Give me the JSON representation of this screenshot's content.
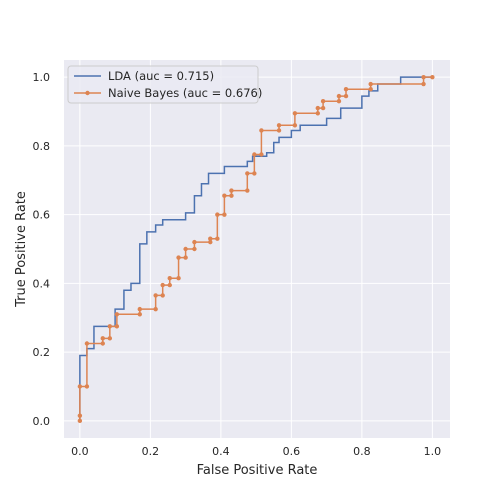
{
  "chart_data": {
    "type": "line",
    "title": "",
    "xlabel": "False Positive Rate",
    "ylabel": "True Positive Rate",
    "xlim": [
      -0.045,
      1.05
    ],
    "ylim": [
      -0.05,
      1.05
    ],
    "xticks": [
      0.0,
      0.2,
      0.4,
      0.6,
      0.8,
      1.0
    ],
    "yticks": [
      0.0,
      0.2,
      0.4,
      0.6,
      0.8,
      1.0
    ],
    "tick_labels_x": [
      "0.0",
      "0.2",
      "0.4",
      "0.6",
      "0.8",
      "1.0"
    ],
    "tick_labels_y": [
      "0.0",
      "0.2",
      "0.4",
      "0.6",
      "0.8",
      "1.0"
    ],
    "grid": true,
    "legend_position": "top-left",
    "background": "#eaeaf2",
    "series": [
      {
        "name": "LDA (auc = 0.715)",
        "color": "#4c72b0",
        "marker": "none",
        "drawstyle": "steps-post",
        "points": [
          [
            0.0,
            0.0
          ],
          [
            0.0,
            0.19
          ],
          [
            0.02,
            0.19
          ],
          [
            0.02,
            0.21
          ],
          [
            0.04,
            0.21
          ],
          [
            0.04,
            0.275
          ],
          [
            0.1,
            0.275
          ],
          [
            0.1,
            0.325
          ],
          [
            0.125,
            0.325
          ],
          [
            0.125,
            0.38
          ],
          [
            0.145,
            0.38
          ],
          [
            0.145,
            0.4
          ],
          [
            0.17,
            0.4
          ],
          [
            0.17,
            0.515
          ],
          [
            0.19,
            0.515
          ],
          [
            0.19,
            0.55
          ],
          [
            0.215,
            0.55
          ],
          [
            0.215,
            0.57
          ],
          [
            0.235,
            0.57
          ],
          [
            0.235,
            0.585
          ],
          [
            0.3,
            0.585
          ],
          [
            0.3,
            0.605
          ],
          [
            0.325,
            0.605
          ],
          [
            0.325,
            0.655
          ],
          [
            0.345,
            0.655
          ],
          [
            0.345,
            0.69
          ],
          [
            0.365,
            0.69
          ],
          [
            0.365,
            0.72
          ],
          [
            0.41,
            0.72
          ],
          [
            0.41,
            0.74
          ],
          [
            0.475,
            0.74
          ],
          [
            0.475,
            0.755
          ],
          [
            0.49,
            0.755
          ],
          [
            0.49,
            0.77
          ],
          [
            0.53,
            0.77
          ],
          [
            0.53,
            0.78
          ],
          [
            0.55,
            0.78
          ],
          [
            0.55,
            0.81
          ],
          [
            0.565,
            0.81
          ],
          [
            0.565,
            0.825
          ],
          [
            0.6,
            0.825
          ],
          [
            0.6,
            0.845
          ],
          [
            0.625,
            0.845
          ],
          [
            0.625,
            0.86
          ],
          [
            0.7,
            0.86
          ],
          [
            0.7,
            0.88
          ],
          [
            0.74,
            0.88
          ],
          [
            0.74,
            0.91
          ],
          [
            0.8,
            0.91
          ],
          [
            0.8,
            0.945
          ],
          [
            0.82,
            0.945
          ],
          [
            0.82,
            0.96
          ],
          [
            0.845,
            0.96
          ],
          [
            0.845,
            0.98
          ],
          [
            0.91,
            0.98
          ],
          [
            0.91,
            1.0
          ],
          [
            1.0,
            1.0
          ]
        ]
      },
      {
        "name": "Naive Bayes (auc = 0.676)",
        "color": "#dd8452",
        "marker": "circle",
        "drawstyle": "points",
        "points": [
          [
            0.0,
            0.0
          ],
          [
            0.0,
            0.015
          ],
          [
            0.0,
            0.1
          ],
          [
            0.02,
            0.1
          ],
          [
            0.02,
            0.225
          ],
          [
            0.065,
            0.225
          ],
          [
            0.065,
            0.24
          ],
          [
            0.085,
            0.24
          ],
          [
            0.085,
            0.275
          ],
          [
            0.105,
            0.275
          ],
          [
            0.105,
            0.31
          ],
          [
            0.17,
            0.31
          ],
          [
            0.17,
            0.325
          ],
          [
            0.215,
            0.325
          ],
          [
            0.215,
            0.365
          ],
          [
            0.235,
            0.365
          ],
          [
            0.235,
            0.395
          ],
          [
            0.255,
            0.395
          ],
          [
            0.255,
            0.415
          ],
          [
            0.28,
            0.415
          ],
          [
            0.28,
            0.475
          ],
          [
            0.3,
            0.475
          ],
          [
            0.3,
            0.5
          ],
          [
            0.325,
            0.5
          ],
          [
            0.325,
            0.52
          ],
          [
            0.37,
            0.52
          ],
          [
            0.37,
            0.53
          ],
          [
            0.39,
            0.53
          ],
          [
            0.39,
            0.6
          ],
          [
            0.41,
            0.6
          ],
          [
            0.41,
            0.655
          ],
          [
            0.43,
            0.655
          ],
          [
            0.43,
            0.67
          ],
          [
            0.475,
            0.67
          ],
          [
            0.475,
            0.72
          ],
          [
            0.495,
            0.72
          ],
          [
            0.495,
            0.775
          ],
          [
            0.515,
            0.775
          ],
          [
            0.515,
            0.845
          ],
          [
            0.565,
            0.845
          ],
          [
            0.565,
            0.86
          ],
          [
            0.61,
            0.86
          ],
          [
            0.61,
            0.895
          ],
          [
            0.675,
            0.895
          ],
          [
            0.675,
            0.91
          ],
          [
            0.69,
            0.91
          ],
          [
            0.69,
            0.93
          ],
          [
            0.735,
            0.93
          ],
          [
            0.735,
            0.945
          ],
          [
            0.755,
            0.945
          ],
          [
            0.755,
            0.965
          ],
          [
            0.825,
            0.965
          ],
          [
            0.825,
            0.98
          ],
          [
            0.975,
            0.98
          ],
          [
            0.975,
            1.0
          ],
          [
            1.0,
            1.0
          ]
        ]
      }
    ]
  }
}
